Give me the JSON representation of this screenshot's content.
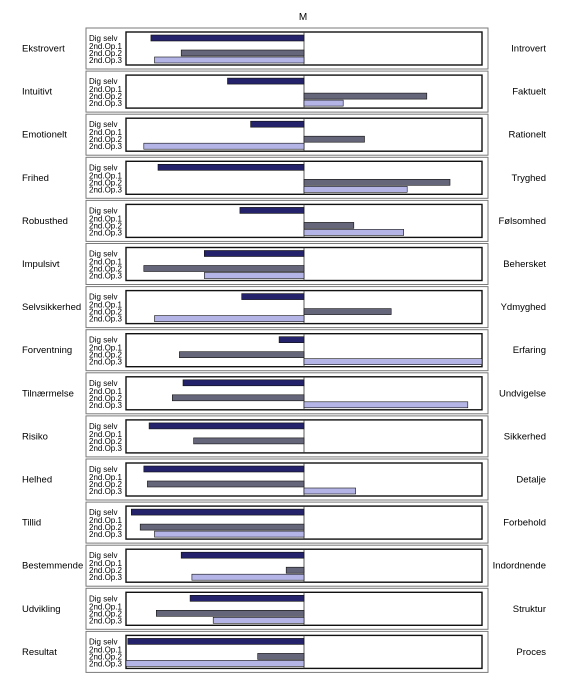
{
  "chart_data": {
    "type": "bar",
    "orientation": "horizontal",
    "title": "M",
    "xlim": [
      -10,
      10
    ],
    "series_labels": [
      "Dig selv",
      "2nd.Op.1",
      "2nd.Op.2",
      "2nd.Op.3"
    ],
    "colors": {
      "Dig selv": "#23226a",
      "2nd.Op.1": "#5a5a5a",
      "2nd.Op.2": "#66667a",
      "2nd.Op.3": "#b4b4e6"
    },
    "rows": [
      {
        "left": "Ekstrovert",
        "right": "Introvert",
        "values": [
          -8.6,
          0,
          -6.9,
          -8.4
        ]
      },
      {
        "left": "Intuitivt",
        "right": "Faktuelt",
        "values": [
          -4.3,
          0,
          6.9,
          2.2
        ]
      },
      {
        "left": "Emotionelt",
        "right": "Rationelt",
        "values": [
          -3.0,
          0,
          3.4,
          -9.0
        ]
      },
      {
        "left": "Frihed",
        "right": "Tryghed",
        "values": [
          -8.2,
          0,
          8.2,
          5.8
        ]
      },
      {
        "left": "Robusthed",
        "right": "Følsomhed",
        "values": [
          -3.6,
          0,
          2.8,
          5.6
        ]
      },
      {
        "left": "Impulsivt",
        "right": "Behersket",
        "values": [
          -5.6,
          0,
          -9.0,
          -5.6
        ]
      },
      {
        "left": "Selvsikkerhed",
        "right": "Ydmyghed",
        "values": [
          -3.5,
          0,
          4.9,
          -8.4
        ]
      },
      {
        "left": "Forventning",
        "right": "Erfaring",
        "values": [
          -1.4,
          0,
          -7.0,
          10.0
        ]
      },
      {
        "left": "Tilnærmelse",
        "right": "Undvigelse",
        "values": [
          -6.8,
          0,
          -7.4,
          9.2
        ]
      },
      {
        "left": "Risiko",
        "right": "Sikkerhed",
        "values": [
          -8.7,
          0,
          -6.2,
          0
        ]
      },
      {
        "left": "Helhed",
        "right": "Detalje",
        "values": [
          -9.0,
          0,
          -8.8,
          2.9
        ]
      },
      {
        "left": "Tillid",
        "right": "Forbehold",
        "values": [
          -9.7,
          0,
          -9.2,
          -8.4
        ]
      },
      {
        "left": "Bestemmende",
        "right": "Indordnende",
        "values": [
          -6.9,
          0,
          -1.0,
          -6.3
        ]
      },
      {
        "left": "Udvikling",
        "right": "Struktur",
        "values": [
          -6.4,
          0,
          -8.3,
          -5.1
        ]
      },
      {
        "left": "Resultat",
        "right": "Proces",
        "values": [
          -9.9,
          0,
          -2.6,
          -10.0
        ]
      }
    ]
  }
}
